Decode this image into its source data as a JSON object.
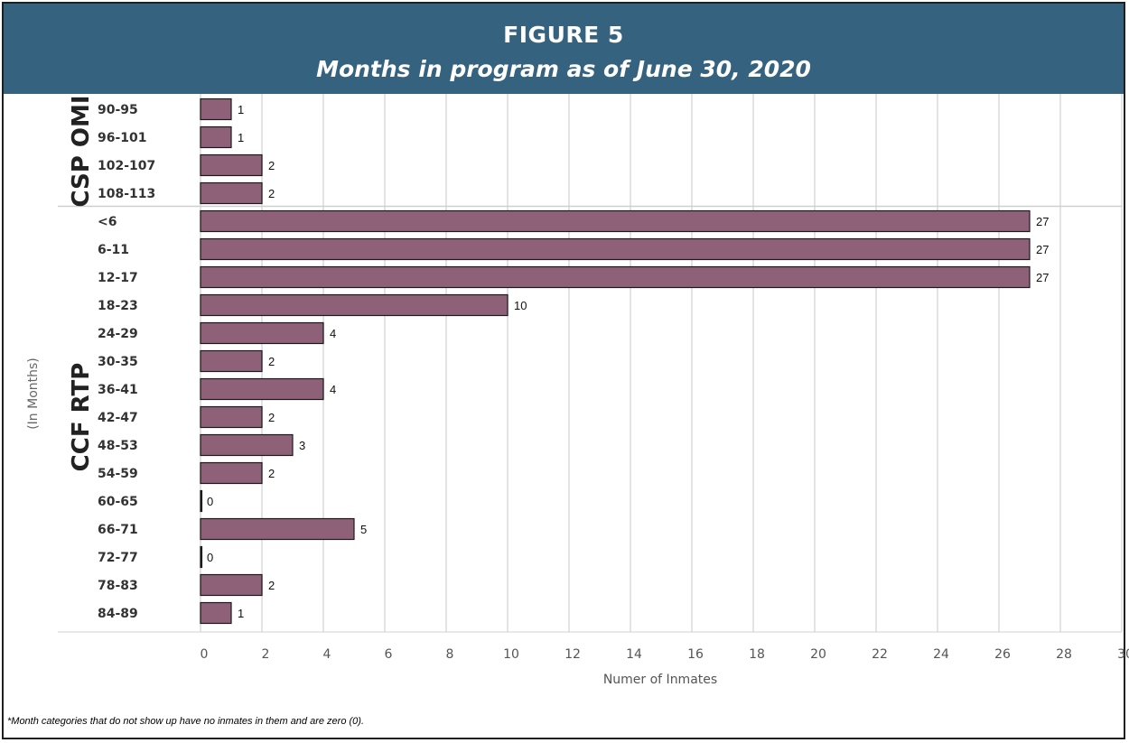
{
  "header": {
    "figure_label": "FIGURE 5",
    "title": "Months in program as of June 30, 2020"
  },
  "colors": {
    "header_bg": "#35627e",
    "bar_fill": "#8f6178",
    "bar_stroke": "#1a1a1a",
    "grid": "#e3e3e3"
  },
  "chart_data": {
    "type": "bar",
    "orientation": "horizontal",
    "groups": [
      {
        "name": "CSP OMI",
        "categories": [
          "90-95",
          "96-101",
          "102-107",
          "108-113"
        ],
        "values": [
          1,
          1,
          2,
          2
        ]
      },
      {
        "name": "CCF RTP",
        "categories": [
          "<6",
          "6-11",
          "12-17",
          "18-23",
          "24-29",
          "30-35",
          "36-41",
          "42-47",
          "48-53",
          "54-59",
          "60-65",
          "66-71",
          "72-77",
          "78-83",
          "84-89"
        ],
        "values": [
          27,
          27,
          27,
          10,
          4,
          2,
          4,
          2,
          3,
          2,
          0,
          5,
          0,
          2,
          1
        ]
      }
    ],
    "xlabel": "Numer of Inmates",
    "ylabel": "(In Months)",
    "xlim": [
      0,
      30
    ],
    "xticks": [
      "0",
      "2",
      "4",
      "6",
      "8",
      "10",
      "12",
      "14",
      "16",
      "18",
      "20",
      "22",
      "24",
      "26",
      "28",
      "30"
    ],
    "grid": true,
    "data_labels": true
  },
  "footnote": "*Month categories that do not show up have no inmates in them and are zero (0)."
}
